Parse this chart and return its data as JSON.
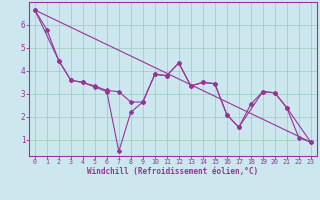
{
  "xlabel": "Windchill (Refroidissement éolien,°C)",
  "bg_color": "#cce8ee",
  "line_color": "#993399",
  "grid_color": "#99ccbb",
  "x_ticks": [
    0,
    1,
    2,
    3,
    4,
    5,
    6,
    7,
    8,
    9,
    10,
    11,
    12,
    13,
    14,
    15,
    16,
    17,
    18,
    19,
    20,
    21,
    22,
    23
  ],
  "y_ticks": [
    1,
    2,
    3,
    4,
    5,
    6
  ],
  "xlim": [
    -0.5,
    23.5
  ],
  "ylim": [
    0.3,
    7.0
  ],
  "zigzag_x": [
    0,
    1,
    2,
    3,
    4,
    5,
    6,
    7,
    8,
    9,
    10,
    11,
    12,
    13,
    14,
    15,
    16,
    17,
    18,
    19,
    20,
    21,
    22,
    23
  ],
  "zigzag_y": [
    6.65,
    5.8,
    4.45,
    3.6,
    3.5,
    3.3,
    3.1,
    0.5,
    2.2,
    2.65,
    3.85,
    3.8,
    4.35,
    3.35,
    3.5,
    3.45,
    2.1,
    1.55,
    2.55,
    3.1,
    3.05,
    2.4,
    1.1,
    0.9
  ],
  "smooth_x": [
    0,
    2,
    3,
    4,
    5,
    6,
    7,
    8,
    9,
    10,
    11,
    12,
    13,
    14,
    15,
    16,
    17,
    19,
    20,
    21,
    23
  ],
  "smooth_y": [
    6.65,
    4.45,
    3.6,
    3.5,
    3.35,
    3.15,
    3.1,
    2.65,
    2.65,
    3.85,
    3.8,
    4.35,
    3.35,
    3.5,
    3.45,
    2.1,
    1.55,
    3.1,
    3.05,
    2.4,
    0.9
  ],
  "trend_x": [
    0,
    23
  ],
  "trend_y": [
    6.65,
    0.9
  ]
}
